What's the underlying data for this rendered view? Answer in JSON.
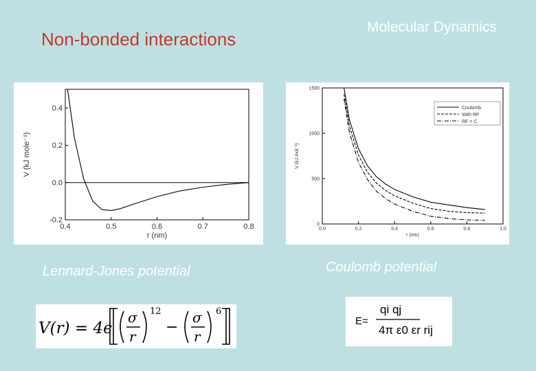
{
  "slide": {
    "title": "Non-bonded interactions",
    "section": "Molecular Dynamics"
  },
  "captions": {
    "lj": "Lennard-Jones potential",
    "coulomb": "Coulomb potential"
  },
  "colors": {
    "background": "#bfe0e3",
    "title": "#c0392b",
    "text": "#ffffff"
  },
  "equations": {
    "lj": {
      "lhs": "V(r) = 4ϵ",
      "sigma": "σ",
      "r": "r",
      "exp12": "12",
      "exp6": "6",
      "minus": "−"
    },
    "coulomb": {
      "lhs": "E=",
      "numerator": "qi qj",
      "denominator": "4π ε0 εr rij"
    }
  },
  "chart_data": [
    {
      "type": "line",
      "title": "",
      "xlabel": "r (nm)",
      "ylabel": "V (kJ mole⁻¹)",
      "xlim": [
        0.4,
        0.8
      ],
      "ylim": [
        -0.2,
        0.5
      ],
      "xticks": [
        "0.4",
        "0.5",
        "0.6",
        "0.7",
        "0.8"
      ],
      "yticks": [
        "-0.2",
        "0.0",
        "0.2",
        "0.4"
      ],
      "series": [
        {
          "style": "solid",
          "x": [
            0.405,
            0.42,
            0.44,
            0.46,
            0.48,
            0.5,
            0.52,
            0.55,
            0.6,
            0.65,
            0.7,
            0.75,
            0.8
          ],
          "y": [
            0.5,
            0.24,
            0.02,
            -0.1,
            -0.145,
            -0.15,
            -0.14,
            -0.115,
            -0.075,
            -0.045,
            -0.025,
            -0.01,
            0.0
          ]
        }
      ]
    },
    {
      "type": "line",
      "title": "",
      "xlabel": "r (nm)",
      "ylabel": "V (kJ mol⁻¹)",
      "xlim": [
        0.0,
        1.0
      ],
      "ylim": [
        0,
        1500
      ],
      "xticks": [
        "0.0",
        "0.2",
        "0.4",
        "0.6",
        "0.8",
        "1.0"
      ],
      "yticks": [
        "0",
        "500",
        "1000",
        "1500"
      ],
      "legend": {
        "placement": "top-right",
        "entries": [
          "Coulomb",
          "With RF",
          "RF = C"
        ]
      },
      "series": [
        {
          "name": "Coulomb",
          "style": "solid",
          "x": [
            0.12,
            0.15,
            0.2,
            0.25,
            0.3,
            0.35,
            0.4,
            0.5,
            0.6,
            0.7,
            0.8,
            0.9
          ],
          "y": [
            1500,
            1150,
            830,
            640,
            520,
            440,
            380,
            300,
            240,
            210,
            180,
            160
          ]
        },
        {
          "name": "With RF",
          "style": "dashed",
          "x": [
            0.12,
            0.15,
            0.2,
            0.25,
            0.3,
            0.35,
            0.4,
            0.5,
            0.6,
            0.7,
            0.8,
            0.9
          ],
          "y": [
            1430,
            1080,
            760,
            570,
            450,
            370,
            310,
            230,
            170,
            140,
            125,
            120
          ]
        },
        {
          "name": "RF = C",
          "style": "dashdot",
          "x": [
            0.12,
            0.15,
            0.2,
            0.25,
            0.3,
            0.35,
            0.4,
            0.5,
            0.6,
            0.7,
            0.8,
            0.9
          ],
          "y": [
            1380,
            1010,
            680,
            490,
            360,
            280,
            220,
            140,
            85,
            60,
            45,
            40
          ]
        }
      ]
    }
  ]
}
